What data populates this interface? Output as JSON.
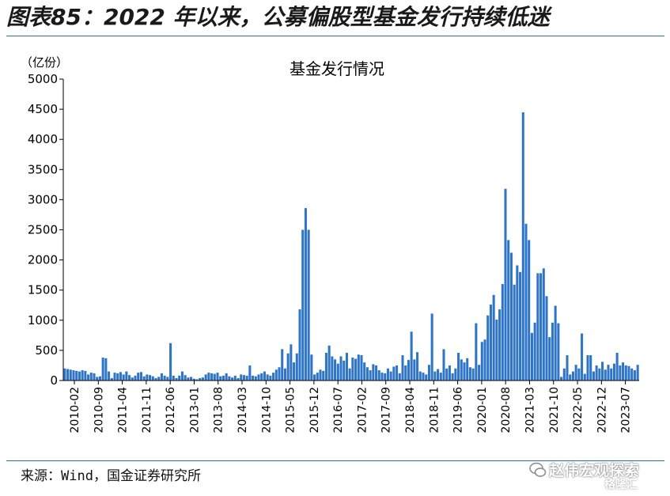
{
  "header": {
    "title": "图表85：2022 年以来，公募偏股型基金发行持续低迷"
  },
  "footer": {
    "source": "来源：Wind，国金证券研究所",
    "watermark_main": "赵伟宏观探索",
    "watermark_sub": "格隆汇"
  },
  "colors": {
    "bar": "#2e75c6",
    "rule": "#2e6ea6"
  },
  "chart_data": {
    "type": "bar",
    "title": "基金发行情况",
    "unit": "（亿份）",
    "ylim": [
      0,
      5000
    ],
    "yticks": [
      0,
      500,
      1000,
      1500,
      2000,
      2500,
      3000,
      3500,
      4000,
      4500,
      5000
    ],
    "xtick_labels": [
      "2010-02",
      "2010-09",
      "2011-04",
      "2011-11",
      "2012-06",
      "2013-01",
      "2013-08",
      "2014-03",
      "2014-10",
      "2015-05",
      "2015-12",
      "2016-07",
      "2017-02",
      "2017-09",
      "2018-04",
      "2018-11",
      "2019-06",
      "2020-01",
      "2020-08",
      "2021-03",
      "2021-10",
      "2022-05",
      "2022-12",
      "2023-07"
    ],
    "start": "2010-02",
    "frequency": "semi-monthly",
    "values": [
      200,
      190,
      180,
      170,
      160,
      150,
      170,
      160,
      100,
      130,
      120,
      60,
      70,
      380,
      370,
      150,
      40,
      130,
      120,
      140,
      100,
      150,
      90,
      50,
      80,
      130,
      140,
      70,
      100,
      90,
      70,
      40,
      60,
      120,
      80,
      60,
      620,
      80,
      40,
      80,
      150,
      90,
      50,
      60,
      30,
      20,
      40,
      50,
      100,
      130,
      120,
      110,
      130,
      70,
      80,
      120,
      70,
      50,
      80,
      40,
      100,
      90,
      80,
      250,
      80,
      70,
      100,
      120,
      150,
      100,
      80,
      130,
      180,
      220,
      520,
      200,
      450,
      600,
      300,
      450,
      1180,
      2500,
      2860,
      2500,
      430,
      100,
      130,
      180,
      160,
      460,
      580,
      400,
      350,
      280,
      400,
      330,
      460,
      200,
      380,
      360,
      430,
      420,
      300,
      220,
      170,
      270,
      250,
      170,
      130,
      120,
      200,
      150,
      230,
      250,
      120,
      420,
      250,
      340,
      810,
      350,
      470,
      150,
      130,
      100,
      260,
      1110,
      150,
      190,
      130,
      520,
      200,
      250,
      120,
      200,
      460,
      350,
      300,
      370,
      220,
      200,
      950,
      260,
      640,
      680,
      1080,
      1260,
      1420,
      1010,
      1180,
      1600,
      3180,
      2330,
      2120,
      1590,
      1910,
      1800,
      4450,
      2600,
      2330,
      790,
      960,
      1780,
      1780,
      1860,
      1400,
      720,
      960,
      1240,
      950,
      60,
      200,
      420,
      100,
      150,
      260,
      200,
      780,
      110,
      420,
      420,
      150,
      250,
      200,
      310,
      180,
      260,
      200,
      280,
      460,
      250,
      300,
      250,
      240,
      200,
      170,
      260
    ]
  }
}
